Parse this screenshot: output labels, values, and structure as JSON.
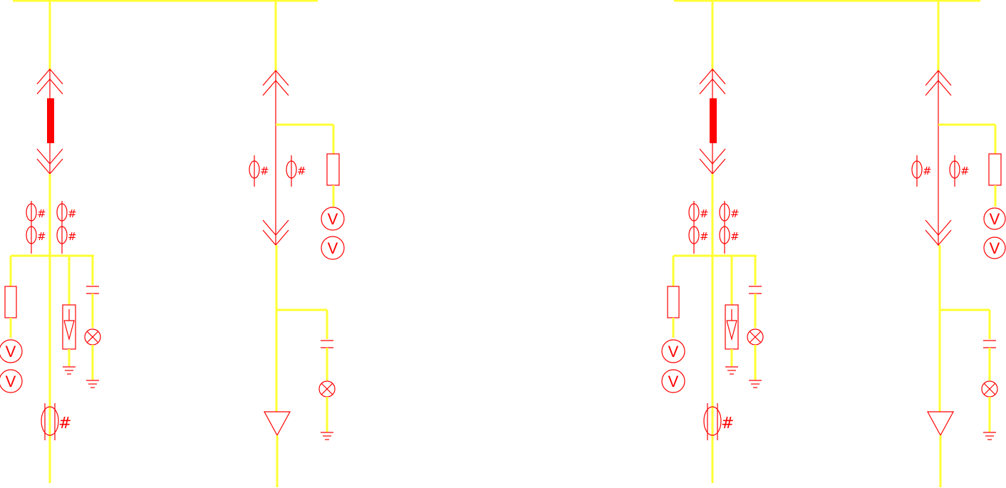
{
  "colors": {
    "busbar": "#ffff33",
    "symbol": "#ff0000",
    "background": "#ffffff"
  },
  "labels": {
    "voltmeter": "V",
    "ct_mark": "#"
  },
  "icons": [
    "withdrawable-contact-icon",
    "circuit-breaker-icon",
    "current-transformer-icon",
    "fuse-icon",
    "voltmeter-icon",
    "surge-arrester-icon",
    "capacitor-icon",
    "indicator-lamp-icon",
    "ground-icon",
    "cable-termination-icon"
  ]
}
